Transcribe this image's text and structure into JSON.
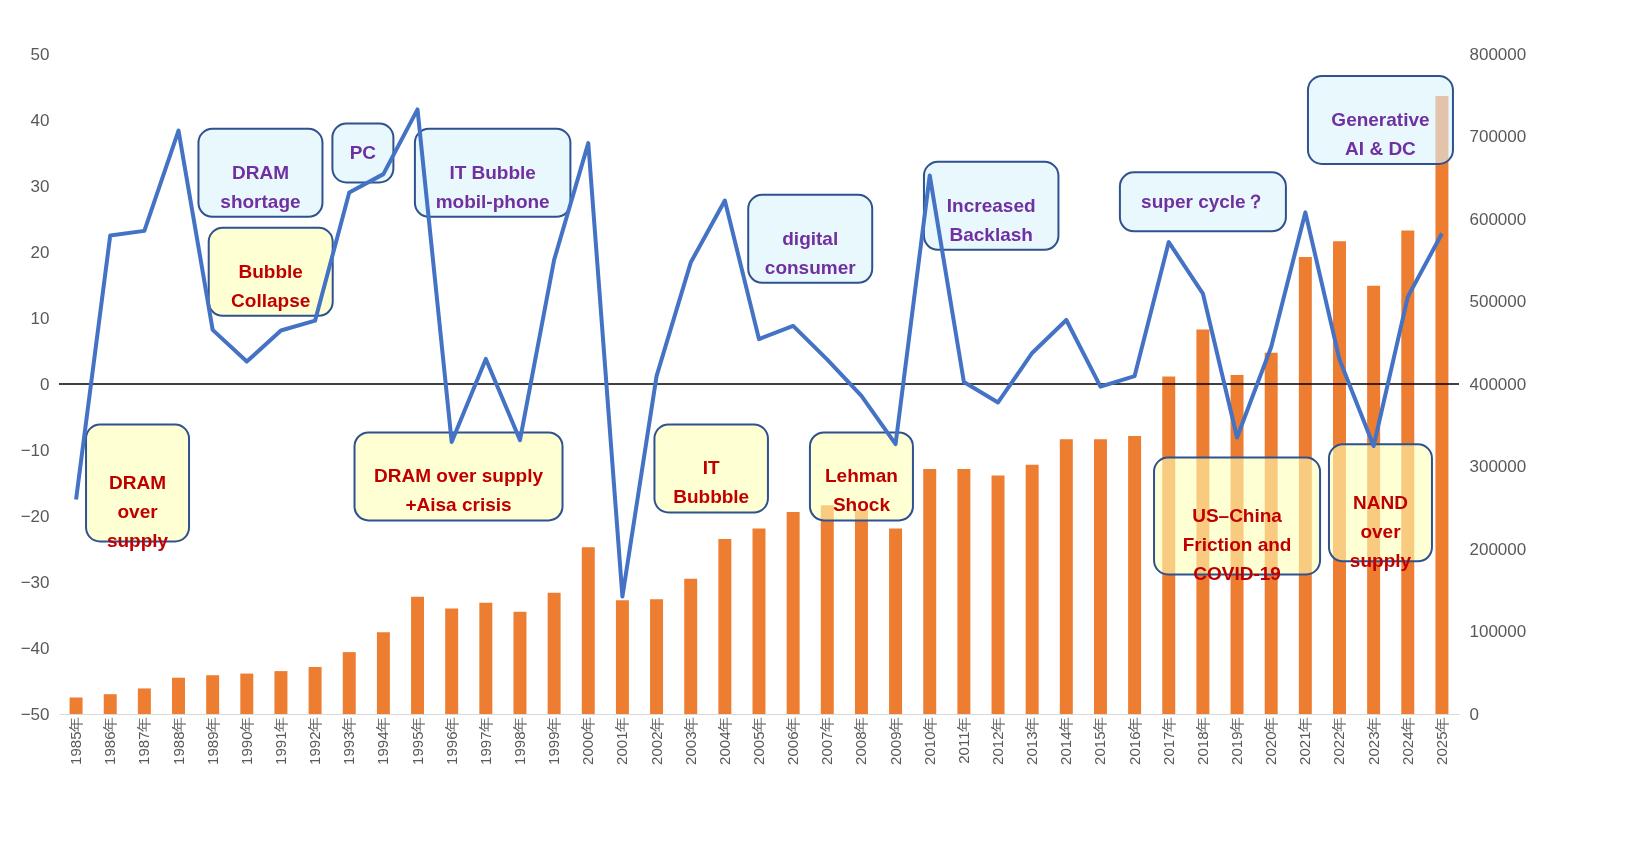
{
  "chart_data": {
    "type": "bar",
    "categories": [
      "1985年",
      "1986年",
      "1987年",
      "1988年",
      "1989年",
      "1990年",
      "1991年",
      "1992年",
      "1993年",
      "1994年",
      "1995年",
      "1996年",
      "1997年",
      "1998年",
      "1999年",
      "2000年",
      "2001年",
      "2002年",
      "2003年",
      "2004年",
      "2005年",
      "2006年",
      "2007年",
      "2008年",
      "2009年",
      "2010年",
      "2011年",
      "2012年",
      "2013年",
      "2014年",
      "2015年",
      "2016年",
      "2017年",
      "2018年",
      "2019年",
      "2020年",
      "2021年",
      "2022年",
      "2023年",
      "2024年",
      "2025年"
    ],
    "series": [
      {
        "axis": "y2",
        "color": "#ed7d31",
        "values": [
          20000,
          24000,
          31000,
          44000,
          47000,
          49000,
          52000,
          57000,
          75000,
          99000,
          142000,
          128000,
          135000,
          124000,
          147000,
          202000,
          138000,
          139000,
          164000,
          212000,
          225000,
          245000,
          253000,
          247000,
          225000,
          297000,
          297000,
          289000,
          302000,
          333000,
          333000,
          337000,
          409000,
          466000,
          411000,
          438000,
          554000,
          573000,
          519000,
          586000,
          749000
        ]
      },
      {
        "type": "line",
        "color": "#4472c4",
        "values": [
          -17.5,
          22.5,
          23.2,
          38.4,
          8.2,
          3.4,
          8.1,
          9.6,
          29,
          31.8,
          41.6,
          -8.8,
          3.8,
          -8.5,
          18.8,
          36.5,
          -32.2,
          1.2,
          18.4,
          27.8,
          6.8,
          8.8,
          3.7,
          -1.8,
          -9.1,
          31.6,
          0.3,
          -2.8,
          4.7,
          9.7,
          -0.4,
          1.2,
          21.5,
          13.7,
          -8.1,
          5.6,
          26,
          3.7,
          -9.4,
          13.2,
          22.8
        ]
      }
    ],
    "ylim": [
      -50,
      50
    ],
    "yticks": [
      -50,
      -40,
      -30,
      -20,
      -10,
      0,
      10,
      20,
      30,
      40,
      50
    ],
    "y2lim": [
      0,
      800000
    ],
    "y2ticks": [
      0,
      100000,
      200000,
      300000,
      400000,
      500000,
      600000,
      700000,
      800000
    ],
    "ref_lines": [
      {
        "axis": "y",
        "value": 0,
        "color": "#000000"
      }
    ],
    "annotations": [
      "DRAM\nover\nsupply",
      "DRAM\nshortage",
      "Bubble\nCollapse",
      "PC",
      "DRAM over supply\n+Aisa crisis",
      "IT  Bubble\nmobil-phone",
      "IT\nBubbble",
      "digital\nconsumer",
      "Lehman\nShock",
      "Increased\nBacklash",
      "super cycle？",
      "US–China\nFriction and\nCOVID-19",
      "NAND\nover\nsupply",
      "Generative\nAI & DC"
    ]
  }
}
